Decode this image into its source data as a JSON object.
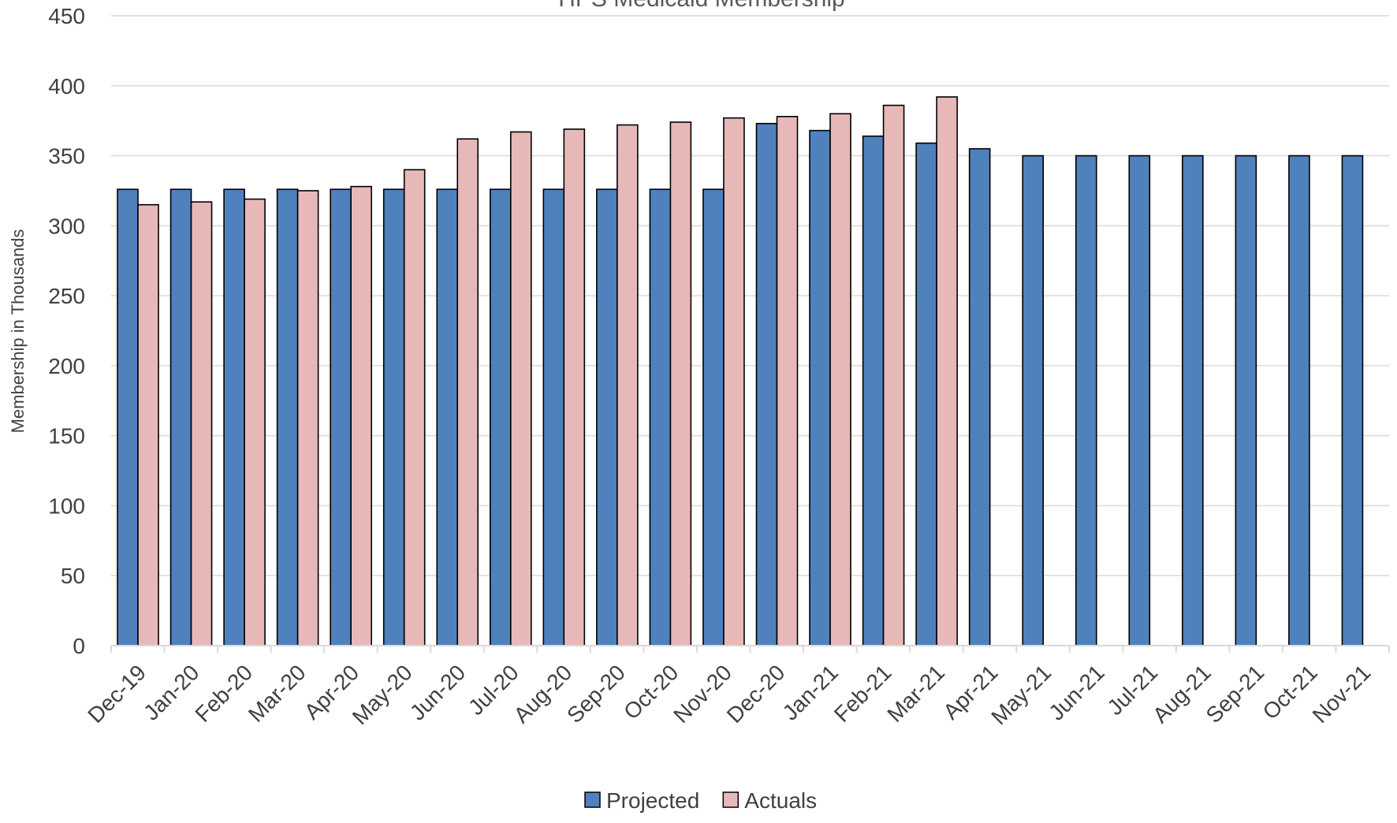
{
  "chart_data": {
    "type": "bar",
    "title": "HPS Medicaid Membership",
    "ylabel": "Membership in Thousands",
    "xlabel": "",
    "ylim": [
      0,
      450
    ],
    "yticks": [
      0,
      50,
      100,
      150,
      200,
      250,
      300,
      350,
      400,
      450
    ],
    "grid": true,
    "legend_position": "bottom",
    "categories": [
      "Dec-19",
      "Jan-20",
      "Feb-20",
      "Mar-20",
      "Apr-20",
      "May-20",
      "Jun-20",
      "Jul-20",
      "Aug-20",
      "Sep-20",
      "Oct-20",
      "Nov-20",
      "Dec-20",
      "Jan-21",
      "Feb-21",
      "Mar-21",
      "Apr-21",
      "May-21",
      "Jun-21",
      "Jul-21",
      "Aug-21",
      "Sep-21",
      "Oct-21",
      "Nov-21"
    ],
    "series": [
      {
        "name": "Projected",
        "color": "#4f81bd",
        "values": [
          326,
          326,
          326,
          326,
          326,
          326,
          326,
          326,
          326,
          326,
          326,
          326,
          373,
          368,
          364,
          359,
          355,
          350,
          350,
          350,
          350,
          350,
          350,
          350
        ]
      },
      {
        "name": "Actuals",
        "color": "#e6b9b8",
        "values": [
          315,
          317,
          319,
          325,
          328,
          340,
          362,
          367,
          369,
          372,
          374,
          377,
          378,
          380,
          386,
          392,
          null,
          null,
          null,
          null,
          null,
          null,
          null,
          null
        ]
      }
    ]
  }
}
